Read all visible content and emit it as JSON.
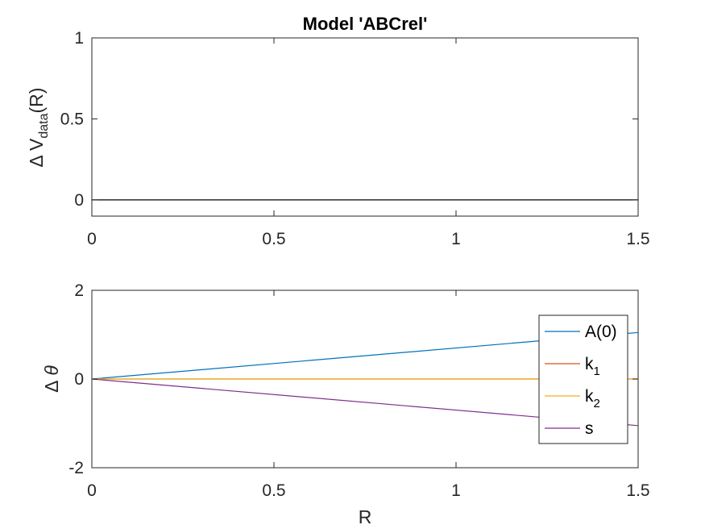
{
  "chart_data": [
    {
      "type": "line",
      "title": "Model 'ABCrel'",
      "xlabel": "",
      "ylabel": {
        "prefix": "Δ V",
        "sub": "data",
        "suffix": "(R)"
      },
      "xlim": [
        0,
        1.5
      ],
      "ylim": [
        -0.1,
        1
      ],
      "xticks": [
        0,
        0.5,
        1,
        1.5
      ],
      "xtick_labels": [
        "0",
        "0.5",
        "1",
        "1.5"
      ],
      "yticks": [
        0,
        0.5,
        1
      ],
      "ytick_labels": [
        "0",
        "0.5",
        "1"
      ],
      "grid": false,
      "legend": null,
      "series": [
        {
          "color": "#000000",
          "x": [
            0,
            1.5
          ],
          "y": [
            0,
            0
          ]
        }
      ]
    },
    {
      "type": "line",
      "title": "",
      "xlabel": "R",
      "ylabel": {
        "prefix": "Δ",
        "symbol": "θ"
      },
      "xlim": [
        0,
        1.5
      ],
      "ylim": [
        -2,
        2
      ],
      "xticks": [
        0,
        0.5,
        1,
        1.5
      ],
      "xtick_labels": [
        "0",
        "0.5",
        "1",
        "1.5"
      ],
      "yticks": [
        -2,
        0,
        2
      ],
      "ytick_labels": [
        "-2",
        "0",
        "2"
      ],
      "grid": false,
      "legend": "top-right",
      "series": [
        {
          "name": "A(0)",
          "label": {
            "base": "A(0)",
            "sub": ""
          },
          "color": "#0072BD",
          "x": [
            0,
            1.5
          ],
          "y": [
            0,
            1.05
          ]
        },
        {
          "name": "k1",
          "label": {
            "base": "k",
            "sub": "1"
          },
          "color": "#D95319",
          "x": [
            0,
            1.5
          ],
          "y": [
            0,
            0
          ]
        },
        {
          "name": "k2",
          "label": {
            "base": "k",
            "sub": "2"
          },
          "color": "#EDB120",
          "x": [
            0,
            1.5
          ],
          "y": [
            0,
            0
          ]
        },
        {
          "name": "s",
          "label": {
            "base": "s",
            "sub": ""
          },
          "color": "#7E2F8E",
          "x": [
            0,
            1.5
          ],
          "y": [
            0,
            -1.05
          ]
        }
      ]
    }
  ]
}
